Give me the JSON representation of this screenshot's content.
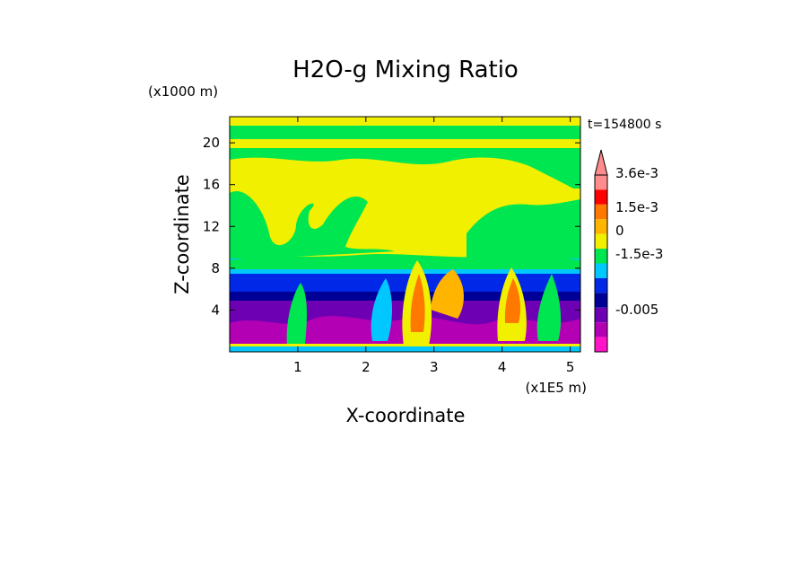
{
  "chart_data": {
    "type": "heatmap",
    "title": "H2O-g Mixing Ratio",
    "xlabel": "X-coordinate",
    "ylabel": "Z-coordinate",
    "x_units_label": "(x1E5 m)",
    "y_units_label": "(x1000 m)",
    "time_label": "t=154800 s",
    "xlim": [
      0,
      5.15
    ],
    "ylim": [
      0,
      22.5
    ],
    "x_ticks": [
      "1",
      "2",
      "3",
      "4",
      "5"
    ],
    "x_tick_values": [
      1,
      2,
      3,
      4,
      5
    ],
    "y_ticks": [
      "4",
      "8",
      "12",
      "16",
      "20"
    ],
    "y_tick_values": [
      4,
      8,
      12,
      16,
      20
    ],
    "colorbar": {
      "tick_labels": [
        "3.6e-3",
        "1.5e-3",
        "0",
        "-1.5e-3",
        "-0.005"
      ],
      "colors_top_to_bottom": [
        "#ff8c8c",
        "#ff0000",
        "#ff7800",
        "#ffb400",
        "#f0f000",
        "#00e650",
        "#00c8ff",
        "#0028e6",
        "#000096",
        "#6e00b4",
        "#b400b4",
        "#ff14c8"
      ],
      "extend_max": true
    },
    "field_description": "perturbation water-vapor mixing ratio contour field",
    "grid": false
  },
  "colors": {
    "yellow": "#f0f000",
    "green": "#00e650",
    "cyan": "#00c8ff",
    "blue": "#0028e6",
    "navy": "#000096",
    "purple": "#6e00b4",
    "magenta": "#b400b4",
    "pink": "#ff14c8",
    "orange": "#ff7800",
    "red": "#ff0000"
  }
}
